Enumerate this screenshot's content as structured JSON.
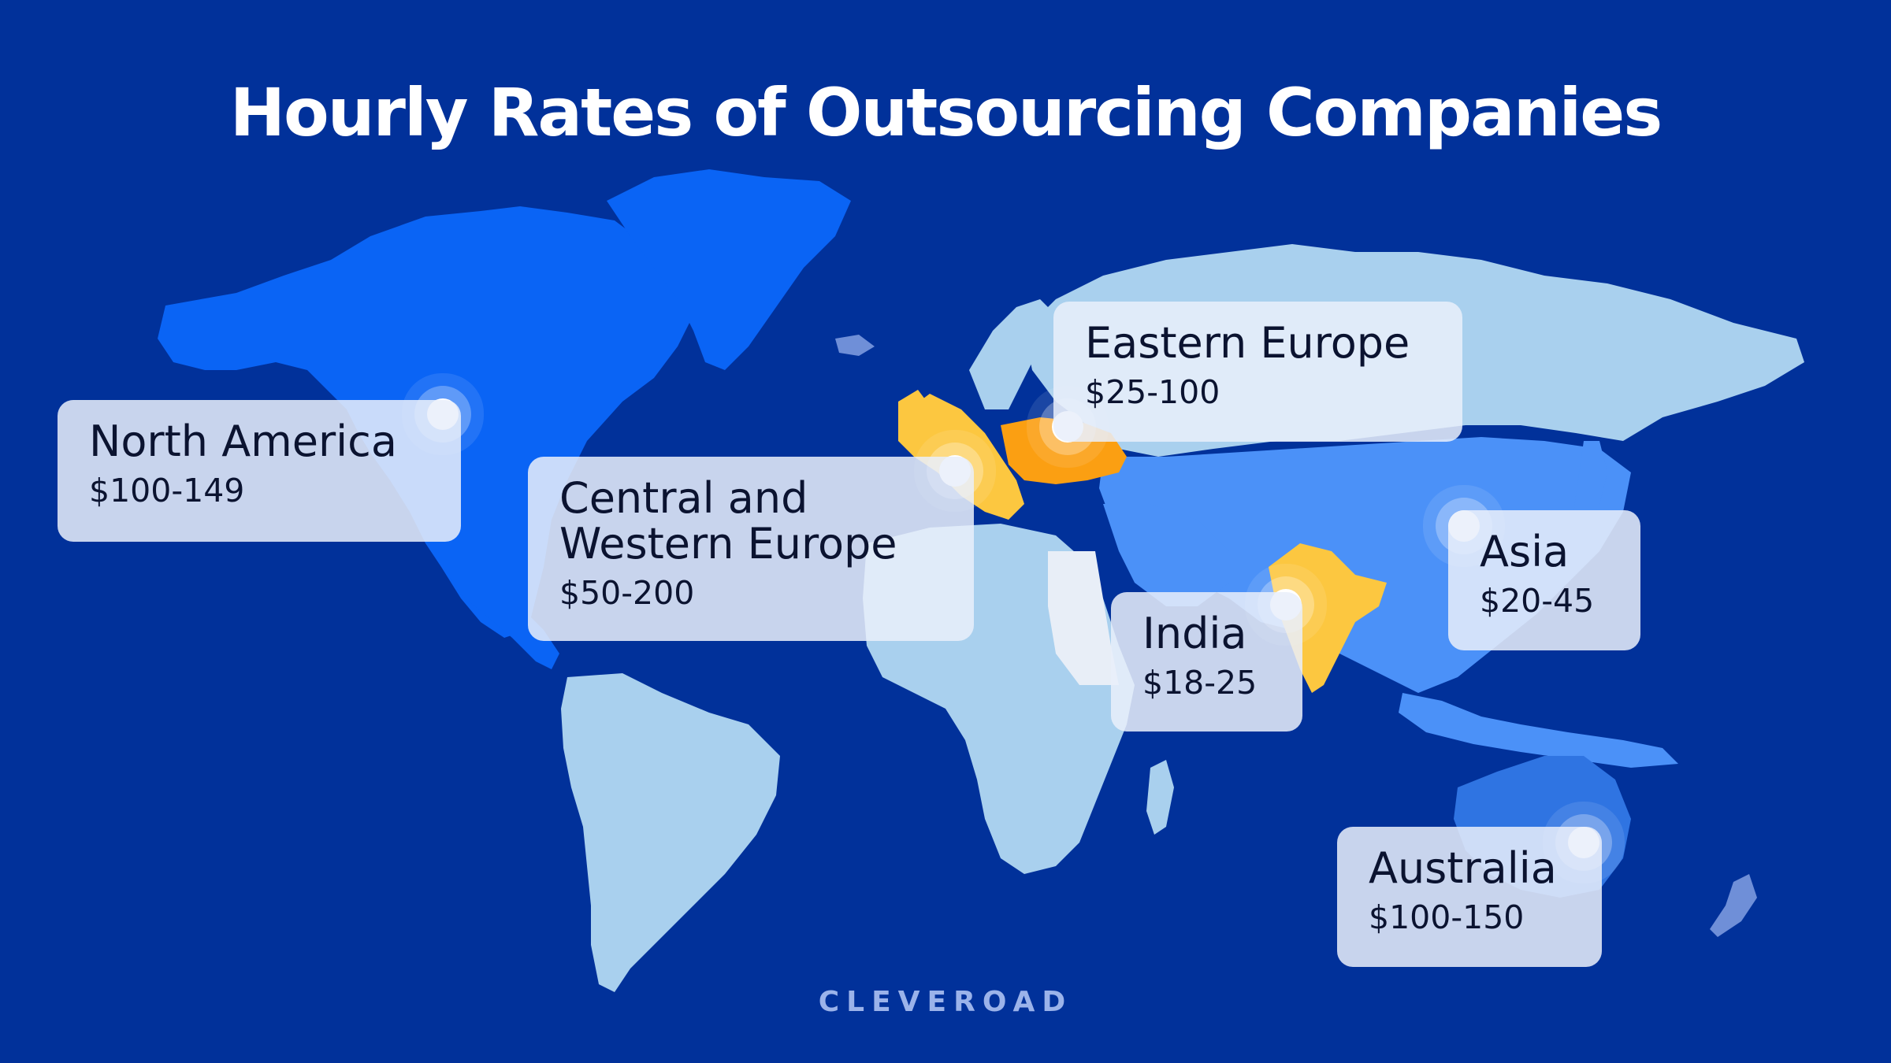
{
  "title": "Hourly Rates of Outsourcing Companies",
  "brand": "CLEVEROAD",
  "colors": {
    "background": "#01319a",
    "north_america": "#0a64f5",
    "greenland": "#0a64f5",
    "russia_latam_africa": "#a9d0ee",
    "asia": "#4b91f8",
    "australia": "#2f74e2",
    "western_europe": "#fcc740",
    "eastern_europe": "#fb9f12",
    "india": "#fcc740",
    "egypt": "#e8eef7"
  },
  "regions": [
    {
      "id": "north-america",
      "name": "North America",
      "rate": "$100-149"
    },
    {
      "id": "central-western-europe",
      "name_line1": "Central and",
      "name_line2": "Western Europe",
      "rate": "$50-200"
    },
    {
      "id": "eastern-europe",
      "name": "Eastern Europe",
      "rate": "$25-100"
    },
    {
      "id": "india",
      "name": "India",
      "rate": "$18-25"
    },
    {
      "id": "asia",
      "name": "Asia",
      "rate": "$20-45"
    },
    {
      "id": "australia",
      "name": "Australia",
      "rate": "$100-150"
    }
  ]
}
